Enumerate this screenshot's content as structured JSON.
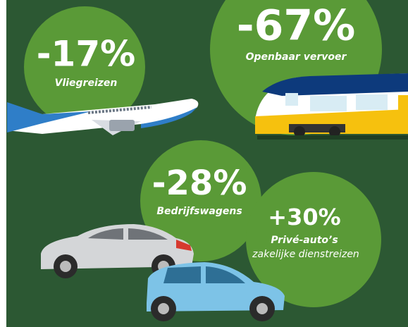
{
  "items": [
    {
      "value": "-17%",
      "label": "Vliegreizen"
    },
    {
      "value": "-67%",
      "label": "Openbaar vervoer"
    },
    {
      "value": "-28%",
      "label": "Bedrijfswagens"
    },
    {
      "value": "+30%",
      "label": "Privé-auto’s",
      "sublabel": "zakelijke dienstreizen"
    }
  ]
}
